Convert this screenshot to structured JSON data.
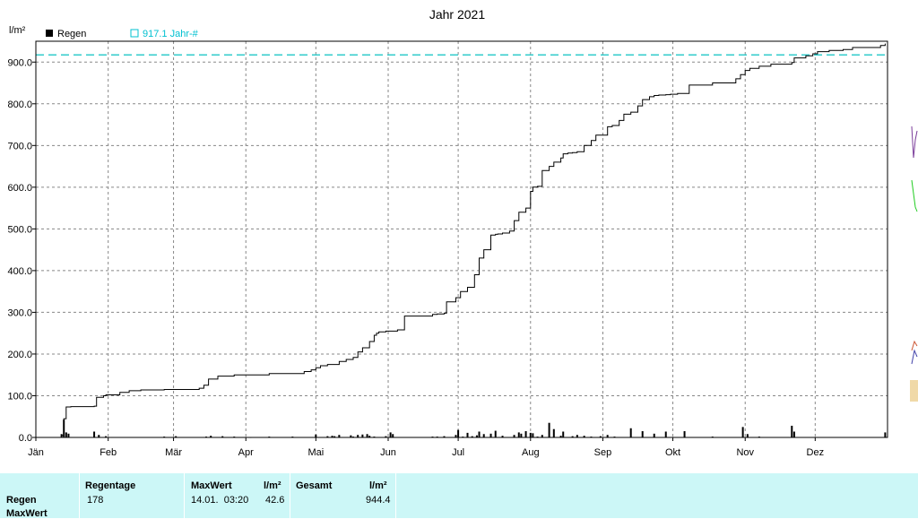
{
  "chart_data": {
    "type": "line",
    "title": "Jahr 2021",
    "ylabel": "l/m²",
    "ylim": [
      0,
      950
    ],
    "yticks": [
      "0.0",
      "100.0",
      "200.0",
      "300.0",
      "400.0",
      "500.0",
      "600.0",
      "700.0",
      "800.0",
      "900.0"
    ],
    "xlim": [
      0,
      365
    ],
    "xticks": [
      {
        "label": "Jän",
        "day": 0
      },
      {
        "label": "Feb",
        "day": 31
      },
      {
        "label": "Mär",
        "day": 59
      },
      {
        "label": "Apr",
        "day": 90
      },
      {
        "label": "Mai",
        "day": 120
      },
      {
        "label": "Jun",
        "day": 151
      },
      {
        "label": "Jul",
        "day": 181
      },
      {
        "label": "Aug",
        "day": 212
      },
      {
        "label": "Sep",
        "day": 243
      },
      {
        "label": "Okt",
        "day": 273
      },
      {
        "label": "Nov",
        "day": 304
      },
      {
        "label": "Dez",
        "day": 334
      }
    ],
    "grid": true,
    "legend": [
      {
        "label": "Regen",
        "color": "#000000",
        "marker": "filled-square"
      },
      {
        "label": "917.1 Jahr-#",
        "color": "#00c0d0",
        "marker": "hollow-square"
      }
    ],
    "reference_line": {
      "value": 917.1,
      "color": "#33cccc",
      "style": "dashed"
    },
    "cumulative": {
      "name": "Regen",
      "x": [
        0,
        10,
        11,
        12,
        13,
        15,
        25,
        26,
        29,
        30,
        36,
        40,
        45,
        55,
        70,
        72,
        74,
        78,
        85,
        100,
        115,
        118,
        120,
        122,
        125,
        130,
        133,
        136,
        138,
        140,
        143,
        145,
        146,
        147,
        150,
        155,
        158,
        170,
        172,
        175,
        176,
        180,
        182,
        185,
        188,
        190,
        192,
        195,
        197,
        198,
        200,
        203,
        205,
        207,
        210,
        212,
        213,
        215,
        217,
        220,
        222,
        225,
        226,
        228,
        230,
        232,
        235,
        238,
        240,
        245,
        247,
        250,
        252,
        255,
        258,
        260,
        263,
        265,
        267,
        270,
        272,
        275,
        280,
        290,
        300,
        302,
        304,
        306,
        310,
        315,
        324,
        325,
        330,
        333,
        335,
        340,
        346,
        350,
        362,
        364
      ],
      "y": [
        0,
        0,
        5,
        45,
        73,
        74,
        75,
        96,
        100,
        102,
        108,
        112,
        114,
        115,
        118,
        125,
        140,
        147,
        150,
        153,
        158,
        162,
        167,
        172,
        175,
        182,
        187,
        192,
        205,
        215,
        230,
        245,
        250,
        253,
        255,
        258,
        291,
        295,
        296,
        298,
        325,
        335,
        350,
        360,
        390,
        430,
        450,
        485,
        487,
        488,
        490,
        495,
        520,
        540,
        550,
        590,
        600,
        602,
        640,
        650,
        660,
        670,
        680,
        682,
        683,
        685,
        700,
        712,
        725,
        745,
        748,
        760,
        775,
        780,
        795,
        810,
        817,
        820,
        821,
        822,
        823,
        825,
        845,
        850,
        860,
        870,
        880,
        885,
        890,
        895,
        899,
        910,
        915,
        920,
        925,
        928,
        930,
        935,
        940,
        944.4
      ]
    },
    "daily": {
      "name": "Regen",
      "x": [
        11,
        12,
        13,
        14,
        25,
        27,
        30,
        55,
        60,
        73,
        75,
        80,
        85,
        92,
        100,
        110,
        120,
        125,
        127,
        128,
        130,
        135,
        136,
        138,
        140,
        142,
        143,
        145,
        150,
        152,
        153,
        170,
        172,
        175,
        180,
        181,
        183,
        185,
        187,
        189,
        190,
        192,
        195,
        197,
        200,
        205,
        207,
        208,
        210,
        212,
        213,
        215,
        217,
        220,
        222,
        225,
        226,
        230,
        232,
        235,
        238,
        242,
        245,
        248,
        255,
        260,
        265,
        270,
        278,
        290,
        303,
        305,
        310,
        324,
        325,
        364
      ],
      "y": [
        8,
        42.6,
        12,
        9,
        14,
        6,
        3,
        2,
        3,
        2,
        4,
        3,
        2,
        1,
        2,
        2,
        7,
        3,
        4,
        3,
        6,
        5,
        2,
        6,
        7,
        8,
        4,
        2,
        3,
        12,
        8,
        2,
        2,
        3,
        6,
        18,
        2,
        11,
        3,
        5,
        14,
        8,
        9,
        16,
        4,
        6,
        12,
        9,
        15,
        11,
        10,
        2,
        6,
        35,
        20,
        4,
        14,
        3,
        6,
        4,
        2,
        3,
        6,
        2,
        22,
        15,
        9,
        14,
        15,
        2,
        25,
        8,
        2,
        28,
        14,
        12
      ]
    }
  },
  "stats": {
    "regentage_header": "Regentage",
    "regentage_value": "178",
    "maxwert_header": "MaxWert",
    "maxwert_date": "14.01.  03:20",
    "unit1": "l/m²",
    "maxwert_value": "42.6",
    "gesamt_header": "Gesamt",
    "unit2": "l/m²",
    "gesamt_value": "944.4",
    "row_label_1": "Regen",
    "row_label_2": "MaxWert"
  },
  "colors": {
    "panel_bg": "#ccf7f7",
    "curve": "#000000",
    "grid": "#888888"
  }
}
